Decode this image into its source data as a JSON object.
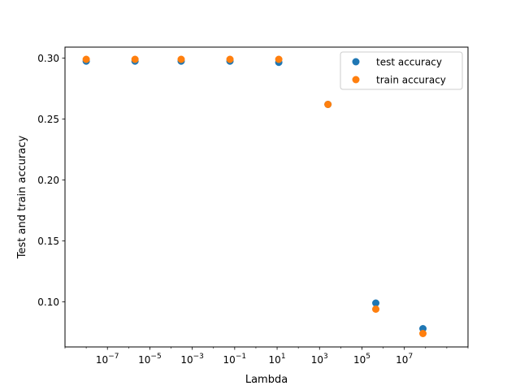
{
  "chart_data": {
    "type": "scatter",
    "title": "",
    "xlabel": "Lambda",
    "ylabel": "Test and train accuracy",
    "x_scale": "log",
    "xlim": [
      1e-09,
      10000000000.0
    ],
    "ylim": [
      0.063,
      0.309
    ],
    "grid": false,
    "legend_position": "top-right",
    "x_ticks": [
      {
        "value": 1e-07,
        "base": "10",
        "exp": "−7"
      },
      {
        "value": 1e-05,
        "base": "10",
        "exp": "−5"
      },
      {
        "value": 0.001,
        "base": "10",
        "exp": "−3"
      },
      {
        "value": 0.1,
        "base": "10",
        "exp": "−1"
      },
      {
        "value": 10.0,
        "base": "10",
        "exp": "1"
      },
      {
        "value": 1000.0,
        "base": "10",
        "exp": "3"
      },
      {
        "value": 100000.0,
        "base": "10",
        "exp": "5"
      },
      {
        "value": 10000000.0,
        "base": "10",
        "exp": "7"
      }
    ],
    "y_ticks": [
      {
        "value": 0.1,
        "label": "0.10"
      },
      {
        "value": 0.15,
        "label": "0.15"
      },
      {
        "value": 0.2,
        "label": "0.20"
      },
      {
        "value": 0.25,
        "label": "0.25"
      },
      {
        "value": 0.3,
        "label": "0.30"
      }
    ],
    "series": [
      {
        "name": "test accuracy",
        "color": "#1f77b4",
        "points": [
          {
            "x": 1e-08,
            "y": 0.2975
          },
          {
            "x": 2e-06,
            "y": 0.2975
          },
          {
            "x": 0.0003,
            "y": 0.2975
          },
          {
            "x": 0.06,
            "y": 0.2975
          },
          {
            "x": 12.0,
            "y": 0.2965
          },
          {
            "x": 2500.0,
            "y": 0.262
          },
          {
            "x": 450000.0,
            "y": 0.099
          },
          {
            "x": 75000000.0,
            "y": 0.078
          }
        ]
      },
      {
        "name": "train accuracy",
        "color": "#ff7f0e",
        "points": [
          {
            "x": 1e-08,
            "y": 0.299
          },
          {
            "x": 2e-06,
            "y": 0.299
          },
          {
            "x": 0.0003,
            "y": 0.299
          },
          {
            "x": 0.06,
            "y": 0.299
          },
          {
            "x": 12.0,
            "y": 0.299
          },
          {
            "x": 2500.0,
            "y": 0.262
          },
          {
            "x": 450000.0,
            "y": 0.094
          },
          {
            "x": 75000000.0,
            "y": 0.074
          }
        ]
      }
    ]
  }
}
